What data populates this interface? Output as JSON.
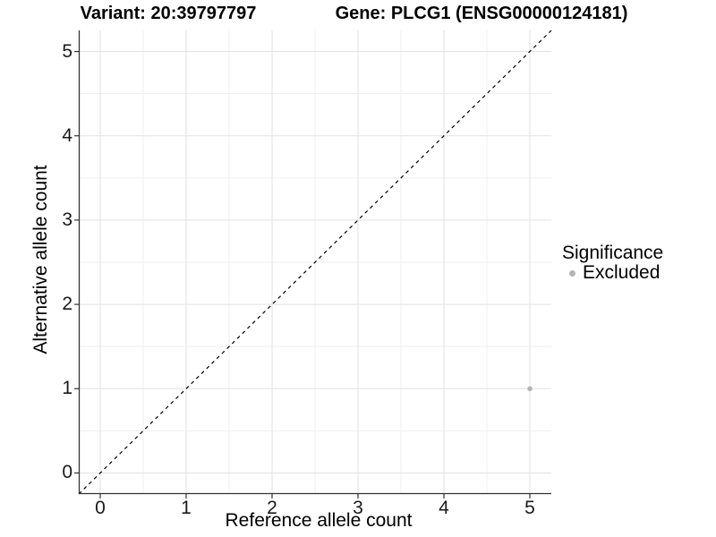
{
  "chart_data": {
    "type": "scatter",
    "titles": [
      "Variant: 20:39797797",
      "Gene: PLCG1 (ENSG00000124181)"
    ],
    "xlabel": "Reference allele count",
    "ylabel": "Alternative allele count",
    "xlim": [
      -0.25,
      5.25
    ],
    "ylim": [
      -0.25,
      5.25
    ],
    "x_ticks": [
      0,
      1,
      2,
      3,
      4,
      5
    ],
    "y_ticks": [
      0,
      1,
      2,
      3,
      4,
      5
    ],
    "grid": {
      "major": [
        0,
        1,
        2,
        3,
        4,
        5
      ],
      "minor": [
        0.5,
        1.5,
        2.5,
        3.5,
        4.5
      ]
    },
    "reference_line": {
      "style": "dashed",
      "color": "#000000",
      "from": [
        -0.25,
        -0.25
      ],
      "to": [
        5.25,
        5.25
      ]
    },
    "series": [
      {
        "name": "Excluded",
        "color": "#b4b4b4",
        "points": [
          {
            "x": 5,
            "y": 1
          }
        ]
      }
    ],
    "legend": {
      "title": "Significance",
      "position": "right",
      "items": [
        {
          "label": "Excluded",
          "color": "#b4b4b4"
        }
      ]
    },
    "colors": {
      "grid_major": "#e2e2e2",
      "grid_minor": "#efefef",
      "axis_line": "#333333",
      "text": "#000000"
    }
  }
}
